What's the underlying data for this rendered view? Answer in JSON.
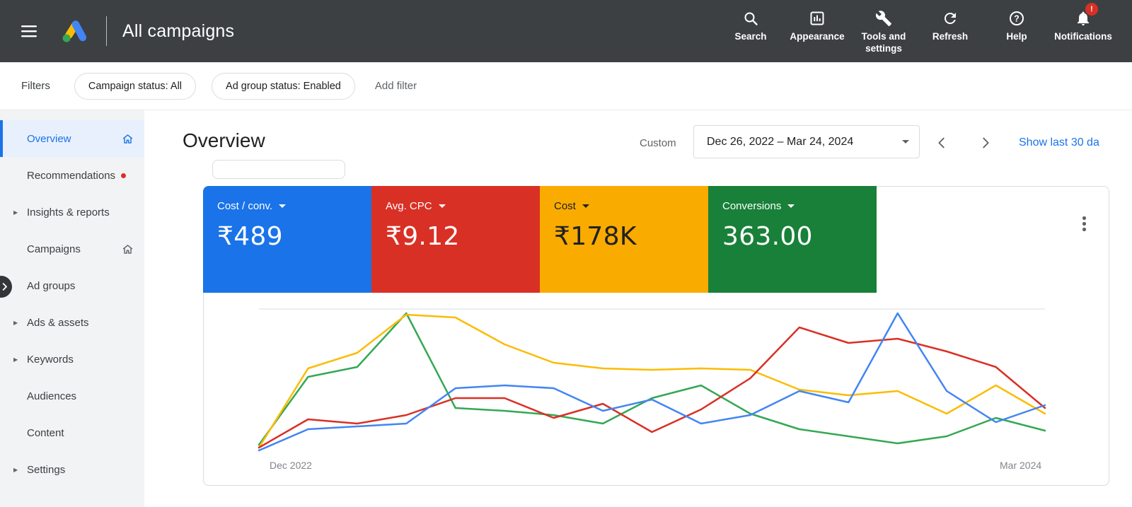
{
  "topbar": {
    "title": "All campaigns",
    "actions": [
      {
        "label": "Search",
        "icon": "search-icon"
      },
      {
        "label": "Appearance",
        "icon": "appearance-icon"
      },
      {
        "label": "Tools and settings",
        "icon": "tools-icon"
      },
      {
        "label": "Refresh",
        "icon": "refresh-icon"
      },
      {
        "label": "Help",
        "icon": "help-icon"
      },
      {
        "label": "Notifications",
        "icon": "notifications-icon",
        "badge": "!"
      }
    ]
  },
  "filterbar": {
    "label": "Filters",
    "chips": [
      "Campaign status: All",
      "Ad group status: Enabled"
    ],
    "add_filter": "Add filter"
  },
  "sidebar": {
    "items": [
      {
        "label": "Overview",
        "selected": true,
        "trailing_icon": "home"
      },
      {
        "label": "Recommendations",
        "badge_dot": true
      },
      {
        "label": "Insights & reports",
        "expandable": true
      },
      {
        "label": "Campaigns",
        "trailing_icon": "home"
      },
      {
        "label": "Ad groups"
      },
      {
        "label": "Ads & assets",
        "expandable": true
      },
      {
        "label": "Keywords",
        "expandable": true
      },
      {
        "label": "Audiences"
      },
      {
        "label": "Content"
      },
      {
        "label": "Settings",
        "expandable": true
      }
    ]
  },
  "page": {
    "title": "Overview",
    "date_mode": "Custom",
    "date_range": "Dec 26, 2022 – Mar 24, 2024",
    "show_last": "Show last 30 da"
  },
  "metrics": [
    {
      "label": "Cost / conv.",
      "value": "₹489",
      "color": "#1a73e8",
      "text": "#ffffff"
    },
    {
      "label": "Avg. CPC",
      "value": "₹9.12",
      "color": "#d93025",
      "text": "#ffffff"
    },
    {
      "label": "Cost",
      "value": "₹178K",
      "color": "#f9ab00",
      "text": "#202124"
    },
    {
      "label": "Conversions",
      "value": "363.00",
      "color": "#188038",
      "text": "#ffffff"
    }
  ],
  "chart_data": {
    "type": "line",
    "title": "",
    "x_start_label": "Dec 2022",
    "x_end_label": "Mar 2024",
    "xlabel": "",
    "ylabel": "",
    "ylim": [
      0,
      100
    ],
    "grid": "top gridline only",
    "legend": "none (line colors match metric cards)",
    "note": "values estimated 0-100 relative to plot height; no y-axis ticks shown",
    "series": [
      {
        "name": "Cost / conv.",
        "color": "#4285f4",
        "values": [
          1,
          16,
          18,
          20,
          45,
          47,
          45,
          29,
          37,
          20,
          26,
          43,
          35,
          98,
          43,
          21,
          33
        ]
      },
      {
        "name": "Avg. CPC",
        "color": "#d93025",
        "values": [
          3,
          23,
          20,
          26,
          38,
          38,
          24,
          34,
          14,
          30,
          52,
          88,
          77,
          80,
          71,
          60,
          31
        ]
      },
      {
        "name": "Cost",
        "color": "#fbbc04",
        "values": [
          3,
          59,
          70,
          97,
          95,
          76,
          63,
          59,
          58,
          59,
          58,
          44,
          40,
          43,
          27,
          47,
          27
        ]
      },
      {
        "name": "Conversions",
        "color": "#34a853",
        "values": [
          5,
          53,
          60,
          98,
          31,
          29,
          26,
          20,
          38,
          47,
          27,
          16,
          11,
          6,
          11,
          24,
          15
        ]
      }
    ]
  }
}
